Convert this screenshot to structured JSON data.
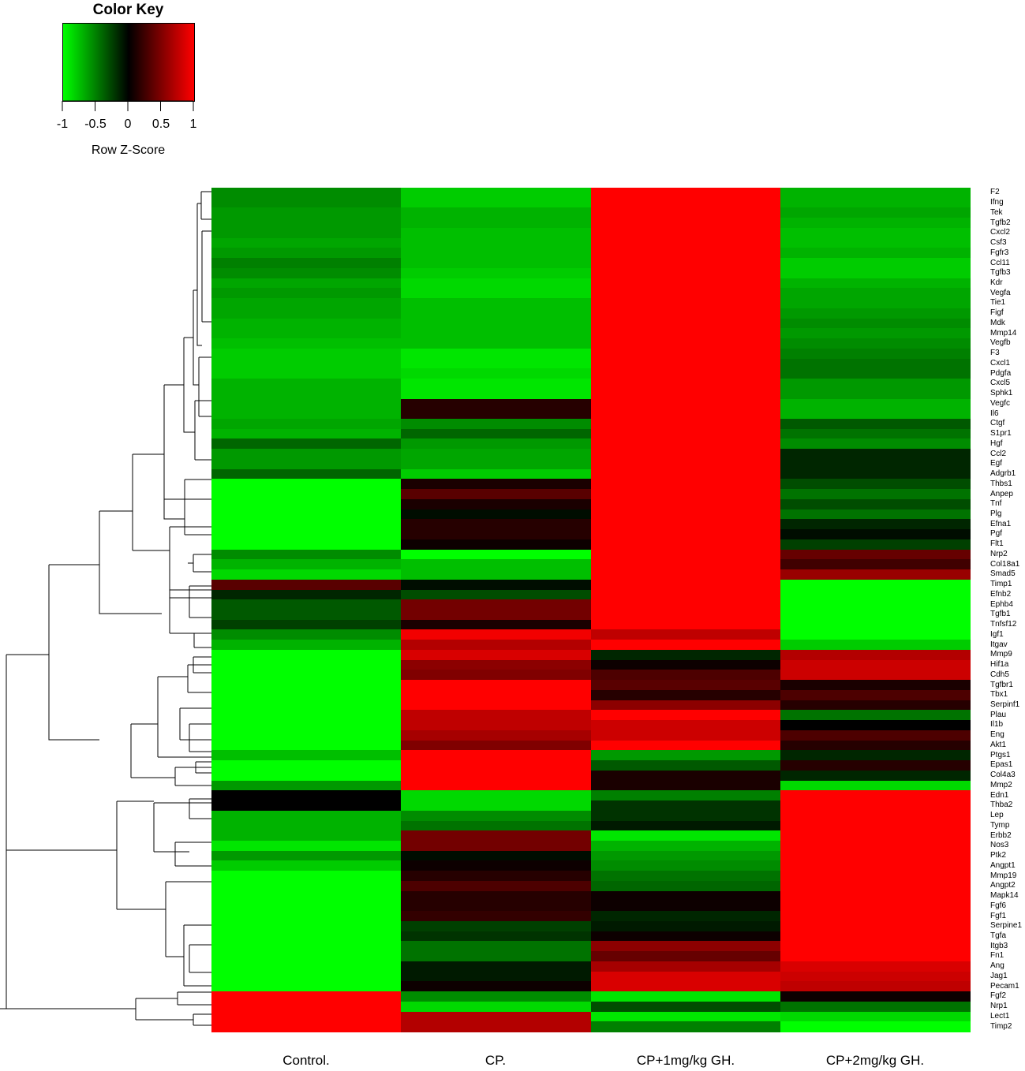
{
  "key": {
    "title": "Color Key",
    "xlabel": "Row Z-Score",
    "ticks": [
      "-1",
      "-0.5",
      "0",
      "0.5",
      "1"
    ],
    "tick_values": [
      -1,
      -0.5,
      0,
      0.5,
      1
    ],
    "colors": {
      "low": "#00ff00",
      "mid": "#000000",
      "high": "#ff0000"
    }
  },
  "chart_data": {
    "type": "heatmap",
    "columns": [
      "Control.",
      "CP.",
      "CP+1mg/kg GH.",
      "CP+2mg/kg GH."
    ],
    "rows": [
      "F2",
      "Ifng",
      "Tek",
      "Tgfb2",
      "Cxcl2",
      "Csf3",
      "Fgfr3",
      "Ccl11",
      "Tgfb3",
      "Kdr",
      "Vegfa",
      "Tie1",
      "Figf",
      "Mdk",
      "Mmp14",
      "Vegfb",
      "F3",
      "Cxcl1",
      "Pdgfa",
      "Cxcl5",
      "Sphk1",
      "Vegfc",
      "Il6",
      "Ctgf",
      "S1pr1",
      "Hgf",
      "Ccl2",
      "Egf",
      "Adgrb1",
      "Thbs1",
      "Anpep",
      "Tnf",
      "Plg",
      "Efna1",
      "Pgf",
      "Flt1",
      "Nrp2",
      "Col18a1",
      "Smad5",
      "Timp1",
      "Efnb2",
      "Ephb4",
      "Tgfb1",
      "Tnfsf12",
      "Igf1",
      "Itgav",
      "Mmp9",
      "Hif1a",
      "Cdh5",
      "Tgfbr1",
      "Tbx1",
      "Serpinf1",
      "Plau",
      "Il1b",
      "Eng",
      "Akt1",
      "Ptgs1",
      "Epas1",
      "Col4a3",
      "Mmp2",
      "Edn1",
      "Thba2",
      "Lep",
      "Tymp",
      "Erbb2",
      "Nos3",
      "Ptk2",
      "Angpt1",
      "Mmp19",
      "Angpt2",
      "Mapk14",
      "Fgf6",
      "Fgf1",
      "Serpine1",
      "Tgfa",
      "Itgb3",
      "Fn1",
      "Ang",
      "Jag1",
      "Pecam1",
      "Fgf2",
      "Nrp1",
      "Lect1",
      "Timp2"
    ],
    "values": [
      [
        -0.55,
        -0.8,
        1.0,
        -0.7
      ],
      [
        -0.55,
        -0.8,
        1.0,
        -0.7
      ],
      [
        -0.6,
        -0.7,
        1.0,
        -0.65
      ],
      [
        -0.6,
        -0.7,
        1.0,
        -0.7
      ],
      [
        -0.6,
        -0.75,
        1.0,
        -0.75
      ],
      [
        -0.65,
        -0.75,
        1.0,
        -0.75
      ],
      [
        -0.6,
        -0.75,
        1.0,
        -0.7
      ],
      [
        -0.5,
        -0.75,
        1.0,
        -0.8
      ],
      [
        -0.55,
        -0.8,
        1.0,
        -0.8
      ],
      [
        -0.65,
        -0.85,
        1.0,
        -0.7
      ],
      [
        -0.6,
        -0.85,
        1.0,
        -0.65
      ],
      [
        -0.65,
        -0.75,
        1.0,
        -0.65
      ],
      [
        -0.65,
        -0.75,
        1.0,
        -0.6
      ],
      [
        -0.7,
        -0.75,
        1.0,
        -0.55
      ],
      [
        -0.7,
        -0.75,
        1.0,
        -0.6
      ],
      [
        -0.75,
        -0.75,
        1.0,
        -0.55
      ],
      [
        -0.8,
        -0.9,
        1.0,
        -0.5
      ],
      [
        -0.8,
        -0.9,
        1.0,
        -0.45
      ],
      [
        -0.8,
        -0.85,
        1.0,
        -0.45
      ],
      [
        -0.7,
        -0.9,
        1.0,
        -0.6
      ],
      [
        -0.7,
        -0.9,
        1.0,
        -0.6
      ],
      [
        -0.7,
        0.15,
        1.0,
        -0.7
      ],
      [
        -0.7,
        0.15,
        1.0,
        -0.7
      ],
      [
        -0.65,
        -0.55,
        1.0,
        -0.35
      ],
      [
        -0.7,
        -0.4,
        1.0,
        -0.45
      ],
      [
        -0.4,
        -0.6,
        1.0,
        -0.55
      ],
      [
        -0.6,
        -0.65,
        1.0,
        -0.15
      ],
      [
        -0.6,
        -0.65,
        1.0,
        -0.15
      ],
      [
        -0.4,
        -0.8,
        1.0,
        -0.15
      ],
      [
        -1.0,
        0.1,
        1.0,
        -0.3
      ],
      [
        -1.0,
        0.35,
        1.0,
        -0.45
      ],
      [
        -1.0,
        0.1,
        1.0,
        -0.3
      ],
      [
        -1.0,
        -0.05,
        1.0,
        -0.45
      ],
      [
        -1.0,
        0.15,
        1.0,
        -0.15
      ],
      [
        -1.0,
        0.15,
        1.0,
        -0.05
      ],
      [
        -1.0,
        0.05,
        1.0,
        -0.25
      ],
      [
        -0.55,
        -1.0,
        1.0,
        0.4
      ],
      [
        -0.7,
        -0.75,
        1.0,
        0.25
      ],
      [
        -0.85,
        -0.75,
        1.0,
        0.6
      ],
      [
        0.35,
        -0.05,
        1.0,
        -1.0
      ],
      [
        -0.15,
        -0.3,
        1.0,
        -1.0
      ],
      [
        -0.35,
        0.45,
        1.0,
        -1.0
      ],
      [
        -0.35,
        0.45,
        1.0,
        -1.0
      ],
      [
        -0.25,
        0.1,
        1.0,
        -1.0
      ],
      [
        -0.55,
        0.95,
        0.75,
        -1.0
      ],
      [
        -0.7,
        0.7,
        1.0,
        -0.8
      ],
      [
        -1.0,
        0.85,
        -0.15,
        0.7
      ],
      [
        -1.0,
        0.55,
        0.05,
        0.8
      ],
      [
        -1.0,
        0.5,
        0.3,
        0.8
      ],
      [
        -1.0,
        1.0,
        0.35,
        0.1
      ],
      [
        -1.0,
        1.0,
        0.15,
        0.3
      ],
      [
        -1.0,
        1.0,
        0.55,
        0.15
      ],
      [
        -1.0,
        0.75,
        1.0,
        -0.45
      ],
      [
        -1.0,
        0.75,
        0.8,
        0.0
      ],
      [
        -1.0,
        0.65,
        0.8,
        0.3
      ],
      [
        -1.0,
        0.5,
        1.0,
        0.15
      ],
      [
        -0.75,
        1.0,
        -0.6,
        -0.15
      ],
      [
        -1.0,
        1.0,
        -0.35,
        0.15
      ],
      [
        -1.0,
        1.0,
        0.1,
        -0.15
      ],
      [
        -0.6,
        1.0,
        0.1,
        -0.85
      ],
      [
        0.0,
        -0.85,
        -0.5,
        1.0
      ],
      [
        0.0,
        -0.85,
        -0.2,
        1.0
      ],
      [
        -0.7,
        -0.55,
        -0.2,
        1.0
      ],
      [
        -0.7,
        -0.45,
        -0.1,
        1.0
      ],
      [
        -0.7,
        0.45,
        -0.9,
        1.0
      ],
      [
        -0.9,
        0.45,
        -0.7,
        1.0
      ],
      [
        -0.6,
        -0.05,
        -0.6,
        1.0
      ],
      [
        -0.8,
        0.05,
        -0.55,
        1.0
      ],
      [
        -1.0,
        0.15,
        -0.45,
        1.0
      ],
      [
        -1.0,
        0.3,
        -0.4,
        1.0
      ],
      [
        -1.0,
        0.15,
        0.05,
        1.0
      ],
      [
        -1.0,
        0.15,
        0.05,
        1.0
      ],
      [
        -1.0,
        0.2,
        -0.15,
        1.0
      ],
      [
        -1.0,
        -0.25,
        -0.1,
        1.0
      ],
      [
        -1.0,
        -0.2,
        0.05,
        1.0
      ],
      [
        -1.0,
        -0.45,
        0.55,
        1.0
      ],
      [
        -1.0,
        -0.45,
        0.4,
        1.0
      ],
      [
        -1.0,
        -0.1,
        0.65,
        0.85
      ],
      [
        -1.0,
        -0.1,
        0.85,
        0.8
      ],
      [
        -1.0,
        0.05,
        0.85,
        0.75
      ],
      [
        1.0,
        -0.55,
        -0.9,
        0.05
      ],
      [
        1.0,
        -0.85,
        -0.3,
        -0.45
      ],
      [
        1.0,
        0.7,
        -0.9,
        -0.85
      ],
      [
        1.0,
        0.7,
        -0.5,
        -1.0
      ]
    ]
  }
}
